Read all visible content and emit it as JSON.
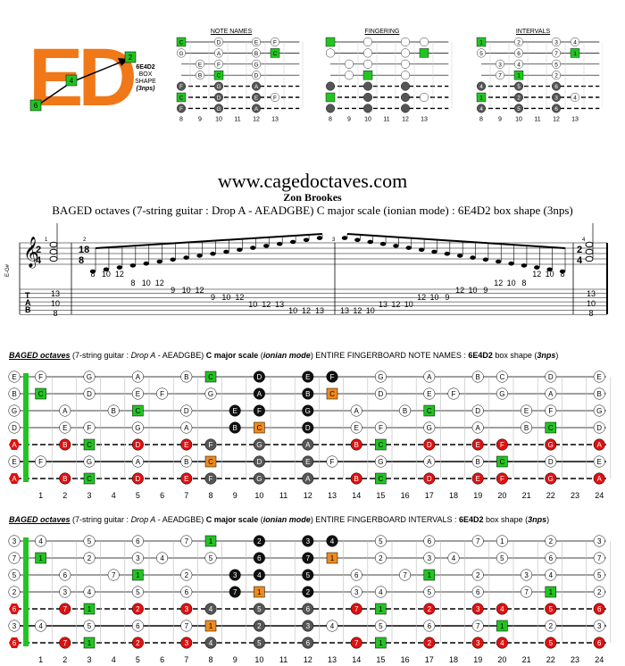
{
  "logo": {
    "text": "ED",
    "box_labels": [
      "2",
      "4",
      "6"
    ],
    "shape_name": "6E4D2",
    "shape_line2": "BOX",
    "shape_line3": "SHAPE",
    "shape_line4": "(3nps)"
  },
  "mini_diagrams": [
    {
      "title": "NOTE NAMES"
    },
    {
      "title": "FINGERING"
    },
    {
      "title": "INTERVALS"
    }
  ],
  "mini_fret_numbers": [
    "8",
    "9",
    "10",
    "11",
    "12",
    "13"
  ],
  "site_url": "www.cagedoctaves.com",
  "author": "Zon Brookes",
  "subtitle": "BAGED octaves (7-string guitar : Drop A - AEADGBE) C major scale (ionian mode) : 6E4D2 box shape (3nps)",
  "notation": {
    "time_sig_start": "2/4",
    "time_sig_mid": "18/8",
    "time_sig_end": "2/4",
    "measure_numbers": [
      "1",
      "2",
      "3",
      "4"
    ],
    "tuning_label": "E-G#",
    "tab_letters": [
      "T",
      "A",
      "B"
    ],
    "tab_measure1": [
      "13",
      "10",
      "8"
    ],
    "tab_run1": [
      {
        "n": "8",
        "s": 5
      },
      {
        "n": "10",
        "s": 5
      },
      {
        "n": "12",
        "s": 5
      },
      {
        "n": "8",
        "s": 4
      },
      {
        "n": "10",
        "s": 4
      },
      {
        "n": "12",
        "s": 4
      },
      {
        "n": "9",
        "s": 3
      },
      {
        "n": "10",
        "s": 3
      },
      {
        "n": "12",
        "s": 3
      },
      {
        "n": "9",
        "s": 2
      },
      {
        "n": "10",
        "s": 2
      },
      {
        "n": "12",
        "s": 2
      },
      {
        "n": "10",
        "s": 1
      },
      {
        "n": "12",
        "s": 1
      },
      {
        "n": "13",
        "s": 1
      },
      {
        "n": "10",
        "s": 0
      },
      {
        "n": "12",
        "s": 0
      },
      {
        "n": "13",
        "s": 0
      }
    ],
    "tab_run2": [
      {
        "n": "13",
        "s": 0
      },
      {
        "n": "12",
        "s": 0
      },
      {
        "n": "10",
        "s": 0
      },
      {
        "n": "13",
        "s": 1
      },
      {
        "n": "12",
        "s": 1
      },
      {
        "n": "10",
        "s": 1
      },
      {
        "n": "12",
        "s": 2
      },
      {
        "n": "10",
        "s": 2
      },
      {
        "n": "9",
        "s": 2
      },
      {
        "n": "12",
        "s": 3
      },
      {
        "n": "10",
        "s": 3
      },
      {
        "n": "9",
        "s": 3
      },
      {
        "n": "12",
        "s": 4
      },
      {
        "n": "10",
        "s": 4
      },
      {
        "n": "8",
        "s": 4
      },
      {
        "n": "12",
        "s": 5
      },
      {
        "n": "10",
        "s": 5
      },
      {
        "n": "8",
        "s": 5
      }
    ],
    "tab_measure4": [
      "13",
      "10",
      "8"
    ]
  },
  "fretboard1": {
    "title_parts": [
      "BAGED octaves",
      " (7-string guitar : ",
      "Drop A",
      " - AEADGBE) ",
      "C major scale",
      "  (",
      "ionian mode",
      ") ENTIRE FINGERBOARD  NOTE NAMES  : ",
      "6E4D2",
      " box shape  (",
      "3nps",
      ")"
    ],
    "strings": [
      [
        "E",
        "F",
        "",
        "G",
        "",
        "A",
        "",
        "B",
        "C",
        "",
        "D",
        "",
        "E",
        "F",
        "",
        "G",
        "",
        "A",
        "",
        "B",
        "C",
        "",
        "D",
        "",
        "E"
      ],
      [
        "B",
        "C",
        "",
        "D",
        "",
        "E",
        "F",
        "",
        "G",
        "",
        "A",
        "",
        "B",
        "C",
        "",
        "D",
        "",
        "E",
        "F",
        "",
        "G",
        "",
        "A",
        "",
        "B"
      ],
      [
        "G",
        "",
        "A",
        "",
        "B",
        "C",
        "",
        "D",
        "",
        "E",
        "F",
        "",
        "G",
        "",
        "A",
        "",
        "B",
        "C",
        "",
        "D",
        "",
        "E",
        "F",
        "",
        "G"
      ],
      [
        "D",
        "",
        "E",
        "F",
        "",
        "G",
        "",
        "A",
        "",
        "B",
        "C",
        "",
        "D",
        "",
        "E",
        "F",
        "",
        "G",
        "",
        "A",
        "",
        "B",
        "C",
        "",
        "D"
      ],
      [
        "A",
        "",
        "B",
        "C",
        "",
        "D",
        "",
        "E",
        "F",
        "",
        "G",
        "",
        "A",
        "",
        "B",
        "C",
        "",
        "D",
        "",
        "E",
        "F",
        "",
        "G",
        "",
        "A"
      ],
      [
        "E",
        "F",
        "",
        "G",
        "",
        "A",
        "",
        "B",
        "C",
        "",
        "D",
        "",
        "E",
        "F",
        "",
        "G",
        "",
        "A",
        "",
        "B",
        "C",
        "",
        "D",
        "",
        "E"
      ],
      [
        "A",
        "",
        "B",
        "C",
        "",
        "D",
        "",
        "E",
        "F",
        "",
        "G",
        "",
        "A",
        "",
        "B",
        "C",
        "",
        "D",
        "",
        "E",
        "F",
        "",
        "G",
        "",
        "A"
      ]
    ],
    "fret_numbers": [
      "1",
      "2",
      "3",
      "4",
      "5",
      "6",
      "7",
      "8",
      "9",
      "10",
      "11",
      "12",
      "13",
      "14",
      "15",
      "16",
      "17",
      "18",
      "19",
      "20",
      "21",
      "22",
      "23",
      "24"
    ]
  },
  "fretboard2": {
    "title_parts": [
      "BAGED octaves",
      " (7-string guitar : ",
      "Drop A",
      " - AEADGBE) ",
      "C major scale",
      "  (",
      "ionian mode",
      ") ENTIRE FINGERBOARD  INTERVALS  : ",
      "6E4D2",
      " box shape  (",
      "3nps",
      ")"
    ],
    "strings": [
      [
        "3",
        "4",
        "",
        "5",
        "",
        "6",
        "",
        "7",
        "1",
        "",
        "2",
        "",
        "3",
        "4",
        "",
        "5",
        "",
        "6",
        "",
        "7",
        "1",
        "",
        "2",
        "",
        "3"
      ],
      [
        "7",
        "1",
        "",
        "2",
        "",
        "3",
        "4",
        "",
        "5",
        "",
        "6",
        "",
        "7",
        "1",
        "",
        "2",
        "",
        "3",
        "4",
        "",
        "5",
        "",
        "6",
        "",
        "7"
      ],
      [
        "5",
        "",
        "6",
        "",
        "7",
        "1",
        "",
        "2",
        "",
        "3",
        "4",
        "",
        "5",
        "",
        "6",
        "",
        "7",
        "1",
        "",
        "2",
        "",
        "3",
        "4",
        "",
        "5"
      ],
      [
        "2",
        "",
        "3",
        "4",
        "",
        "5",
        "",
        "6",
        "",
        "7",
        "1",
        "",
        "2",
        "",
        "3",
        "4",
        "",
        "5",
        "",
        "6",
        "",
        "7",
        "1",
        "",
        "2"
      ],
      [
        "6",
        "",
        "7",
        "1",
        "",
        "2",
        "",
        "3",
        "4",
        "",
        "5",
        "",
        "6",
        "",
        "7",
        "1",
        "",
        "2",
        "",
        "3",
        "4",
        "",
        "5",
        "",
        "6"
      ],
      [
        "3",
        "4",
        "",
        "5",
        "",
        "6",
        "",
        "7",
        "1",
        "",
        "2",
        "",
        "3",
        "4",
        "",
        "5",
        "",
        "6",
        "",
        "7",
        "1",
        "",
        "2",
        "",
        "3"
      ],
      [
        "6",
        "",
        "7",
        "1",
        "",
        "2",
        "",
        "3",
        "4",
        "",
        "5",
        "",
        "6",
        "",
        "7",
        "1",
        "",
        "2",
        "",
        "3",
        "4",
        "",
        "5",
        "",
        "6"
      ]
    ],
    "fret_numbers": [
      "1",
      "2",
      "3",
      "4",
      "5",
      "6",
      "7",
      "8",
      "9",
      "10",
      "11",
      "12",
      "13",
      "14",
      "15",
      "16",
      "17",
      "18",
      "19",
      "20",
      "21",
      "22",
      "23",
      "24"
    ]
  },
  "colors": {
    "green_root": "#22c422",
    "orange_root": "#f08a1c",
    "red_note": "#e01010",
    "black_note": "#111111",
    "gray_note": "#555555",
    "logo_orange": "#f07818"
  }
}
